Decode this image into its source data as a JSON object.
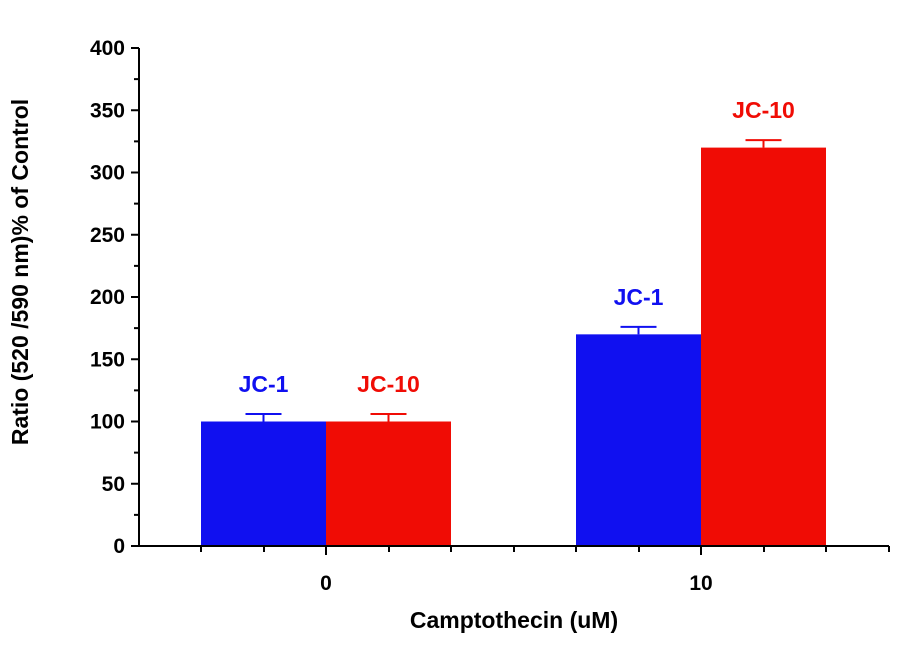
{
  "chart_data": {
    "type": "bar",
    "title": "",
    "xlabel": "Camptothecin (uM)",
    "ylabel": "Ratio (520 /590 nm)% of Control",
    "categories": [
      "0",
      "10"
    ],
    "ylim": [
      0,
      400
    ],
    "yticks": [
      "0",
      "50",
      "100",
      "150",
      "200",
      "250",
      "300",
      "350",
      "400"
    ],
    "grid": false,
    "legend": "none",
    "series": [
      {
        "name": "JC-1",
        "color": "#1010f0",
        "values": [
          100,
          170
        ],
        "errors": [
          6,
          6
        ]
      },
      {
        "name": "JC-10",
        "color": "#f00c05",
        "values": [
          100,
          320
        ],
        "errors": [
          6,
          6
        ]
      }
    ],
    "bar_labels": [
      [
        "JC-1",
        "JC-10"
      ],
      [
        "JC-1",
        "JC-10"
      ]
    ]
  }
}
